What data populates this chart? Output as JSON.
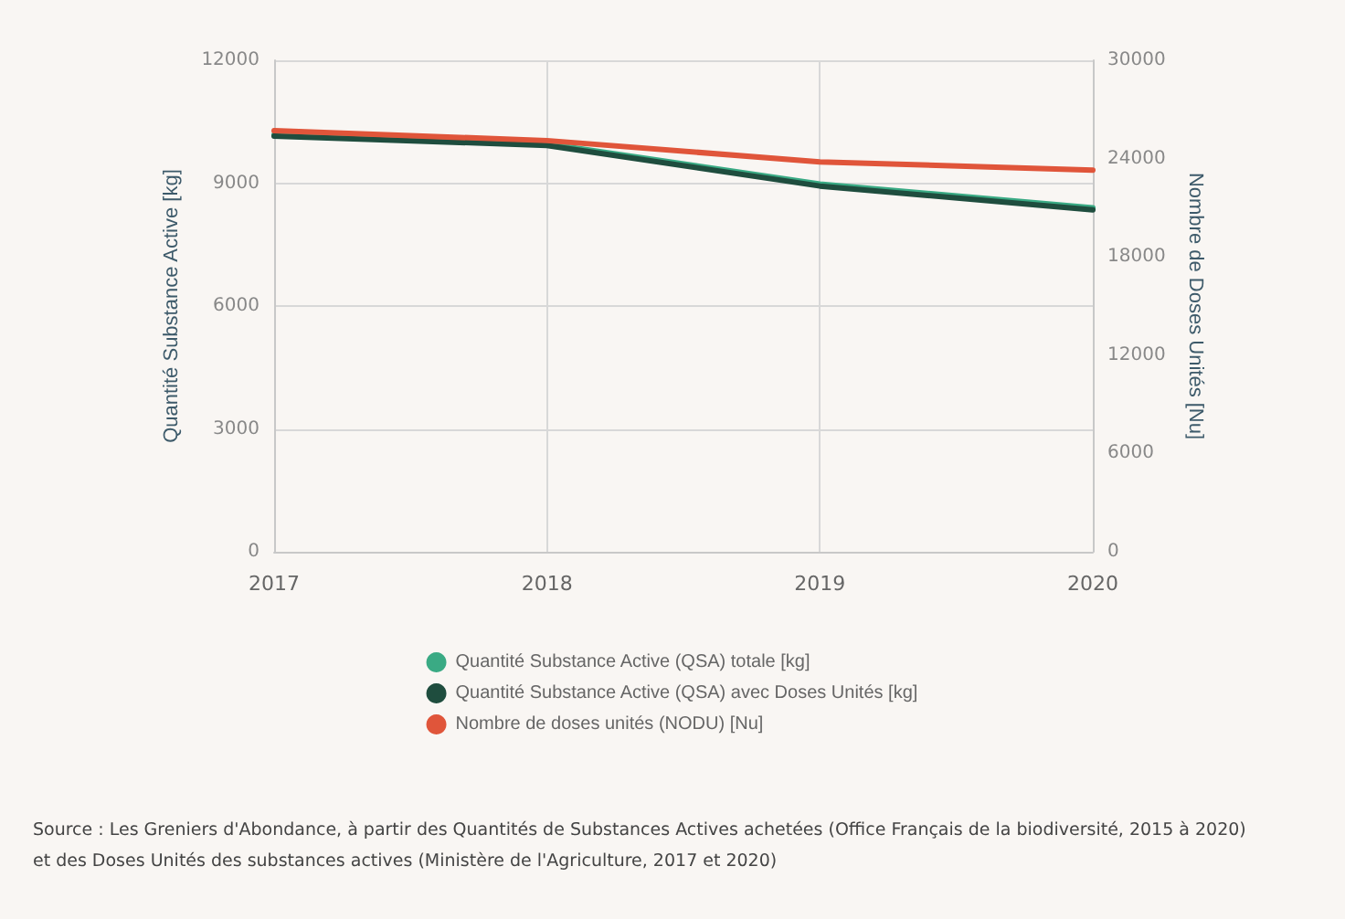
{
  "chart_data": {
    "type": "line",
    "categories": [
      "2017",
      "2018",
      "2019",
      "2020"
    ],
    "ylabel": "Quantité Substance Active [kg]",
    "y2label": "Nombre de Doses Unités [Nu]",
    "ylim": [
      0,
      12000
    ],
    "yticks": [
      0,
      3000,
      6000,
      9000,
      12000
    ],
    "y2lim": [
      0,
      30000
    ],
    "y2ticks": [
      0,
      6000,
      12000,
      18000,
      24000,
      30000
    ],
    "series": [
      {
        "name": "Quantité Substance Active (QSA) totale [kg]",
        "color": "#3aaa84",
        "values": [
          10180,
          9960,
          8980,
          8400
        ]
      },
      {
        "name": "Quantité Substance Active (QSA) avec Doses Unités [kg]",
        "color": "#1f4d3e",
        "values": [
          10150,
          9920,
          8930,
          8350
        ]
      },
      {
        "name": "Nombre de doses unités (NODU) [Nu]",
        "color": "#e0553a",
        "axis": "y2",
        "values": [
          25700,
          25100,
          23800,
          23300
        ]
      }
    ],
    "grid": true,
    "legend": "bottom",
    "marker": "none",
    "line_style": "solid",
    "annotations": [
      "Source : Les Greniers d'Abondance, à partir des Quantités de Substances Actives achetées (Office Français de la biodiversité, 2015 à 2020) et des Doses Unités des substances actives (Ministère de l'Agriculture, 2017 et 2020)"
    ]
  }
}
